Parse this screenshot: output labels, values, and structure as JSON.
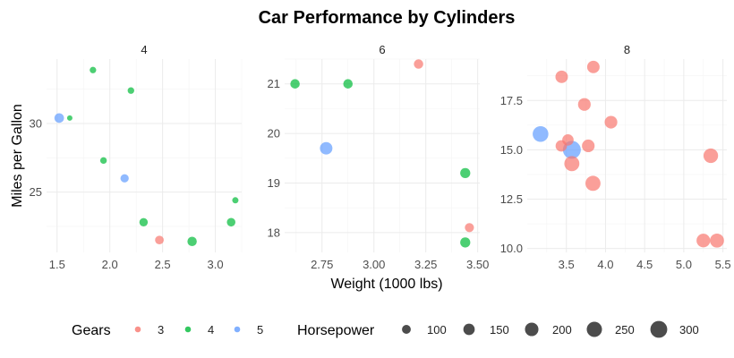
{
  "chart_data": {
    "type": "scatter",
    "title": "Car Performance by Cylinders",
    "xlabel": "Weight (1000 lbs)",
    "ylabel": "Miles per Gallon",
    "grid": true,
    "legend_position": "bottom",
    "color_legend": {
      "title": "Gears",
      "entries": [
        {
          "label": "3",
          "color": "#F8766D"
        },
        {
          "label": "4",
          "color": "#00BA38"
        },
        {
          "label": "5",
          "color": "#619CFF"
        }
      ]
    },
    "size_legend": {
      "title": "Horsepower",
      "entries": [
        {
          "label": "100",
          "value": 100
        },
        {
          "label": "150",
          "value": 150
        },
        {
          "label": "200",
          "value": 200
        },
        {
          "label": "250",
          "value": 250
        },
        {
          "label": "300",
          "value": 300
        }
      ]
    },
    "size_range": [
      52,
      335
    ],
    "facets": [
      {
        "label": "4",
        "xlim": [
          1.4,
          3.25
        ],
        "ylim": [
          20.6,
          34.7
        ],
        "xticks": [
          "1.5",
          "2.0",
          "2.5",
          "3.0"
        ],
        "yticks": [
          "25",
          "30"
        ],
        "points": [
          {
            "x": 1.52,
            "y": 30.4,
            "gear": "5",
            "hp": 113
          },
          {
            "x": 1.62,
            "y": 30.4,
            "gear": "4",
            "hp": 52
          },
          {
            "x": 1.84,
            "y": 33.9,
            "gear": "4",
            "hp": 65
          },
          {
            "x": 1.94,
            "y": 27.3,
            "gear": "4",
            "hp": 66
          },
          {
            "x": 2.14,
            "y": 26.0,
            "gear": "5",
            "hp": 91
          },
          {
            "x": 2.2,
            "y": 32.4,
            "gear": "4",
            "hp": 66
          },
          {
            "x": 2.32,
            "y": 22.8,
            "gear": "4",
            "hp": 93
          },
          {
            "x": 2.47,
            "y": 21.5,
            "gear": "3",
            "hp": 97
          },
          {
            "x": 2.78,
            "y": 21.4,
            "gear": "4",
            "hp": 109
          },
          {
            "x": 3.15,
            "y": 22.8,
            "gear": "4",
            "hp": 95
          },
          {
            "x": 3.19,
            "y": 24.4,
            "gear": "4",
            "hp": 62
          }
        ]
      },
      {
        "label": "6",
        "xlim": [
          2.57,
          3.51
        ],
        "ylim": [
          17.6,
          21.5
        ],
        "xticks": [
          "2.75",
          "3.00",
          "3.25",
          "3.50"
        ],
        "yticks": [
          "18",
          "19",
          "20",
          "21"
        ],
        "points": [
          {
            "x": 2.62,
            "y": 21.0,
            "gear": "4",
            "hp": 110
          },
          {
            "x": 2.77,
            "y": 19.7,
            "gear": "5",
            "hp": 175
          },
          {
            "x": 2.875,
            "y": 21.0,
            "gear": "4",
            "hp": 110
          },
          {
            "x": 3.215,
            "y": 21.4,
            "gear": "3",
            "hp": 110
          },
          {
            "x": 3.44,
            "y": 19.2,
            "gear": "4",
            "hp": 123
          },
          {
            "x": 3.44,
            "y": 17.8,
            "gear": "4",
            "hp": 123
          },
          {
            "x": 3.46,
            "y": 18.1,
            "gear": "3",
            "hp": 105
          }
        ]
      },
      {
        "label": "8",
        "xlim": [
          3.0,
          5.55
        ],
        "ylim": [
          9.8,
          19.6
        ],
        "xticks": [
          "3.5",
          "4.0",
          "4.5",
          "5.0",
          "5.5"
        ],
        "yticks": [
          "10.0",
          "12.5",
          "15.0",
          "17.5"
        ],
        "points": [
          {
            "x": 3.17,
            "y": 15.8,
            "gear": "5",
            "hp": 264
          },
          {
            "x": 3.44,
            "y": 18.7,
            "gear": "3",
            "hp": 175
          },
          {
            "x": 3.435,
            "y": 15.2,
            "gear": "3",
            "hp": 150
          },
          {
            "x": 3.52,
            "y": 15.5,
            "gear": "3",
            "hp": 150
          },
          {
            "x": 3.57,
            "y": 15.0,
            "gear": "5",
            "hp": 335
          },
          {
            "x": 3.57,
            "y": 14.3,
            "gear": "3",
            "hp": 245
          },
          {
            "x": 3.73,
            "y": 17.3,
            "gear": "3",
            "hp": 180
          },
          {
            "x": 3.78,
            "y": 15.2,
            "gear": "3",
            "hp": 180
          },
          {
            "x": 3.84,
            "y": 13.3,
            "gear": "3",
            "hp": 245
          },
          {
            "x": 3.845,
            "y": 19.2,
            "gear": "3",
            "hp": 175
          },
          {
            "x": 4.07,
            "y": 16.4,
            "gear": "3",
            "hp": 180
          },
          {
            "x": 5.25,
            "y": 10.4,
            "gear": "3",
            "hp": 205
          },
          {
            "x": 5.345,
            "y": 14.7,
            "gear": "3",
            "hp": 230
          },
          {
            "x": 5.424,
            "y": 10.4,
            "gear": "3",
            "hp": 215
          }
        ]
      }
    ]
  }
}
